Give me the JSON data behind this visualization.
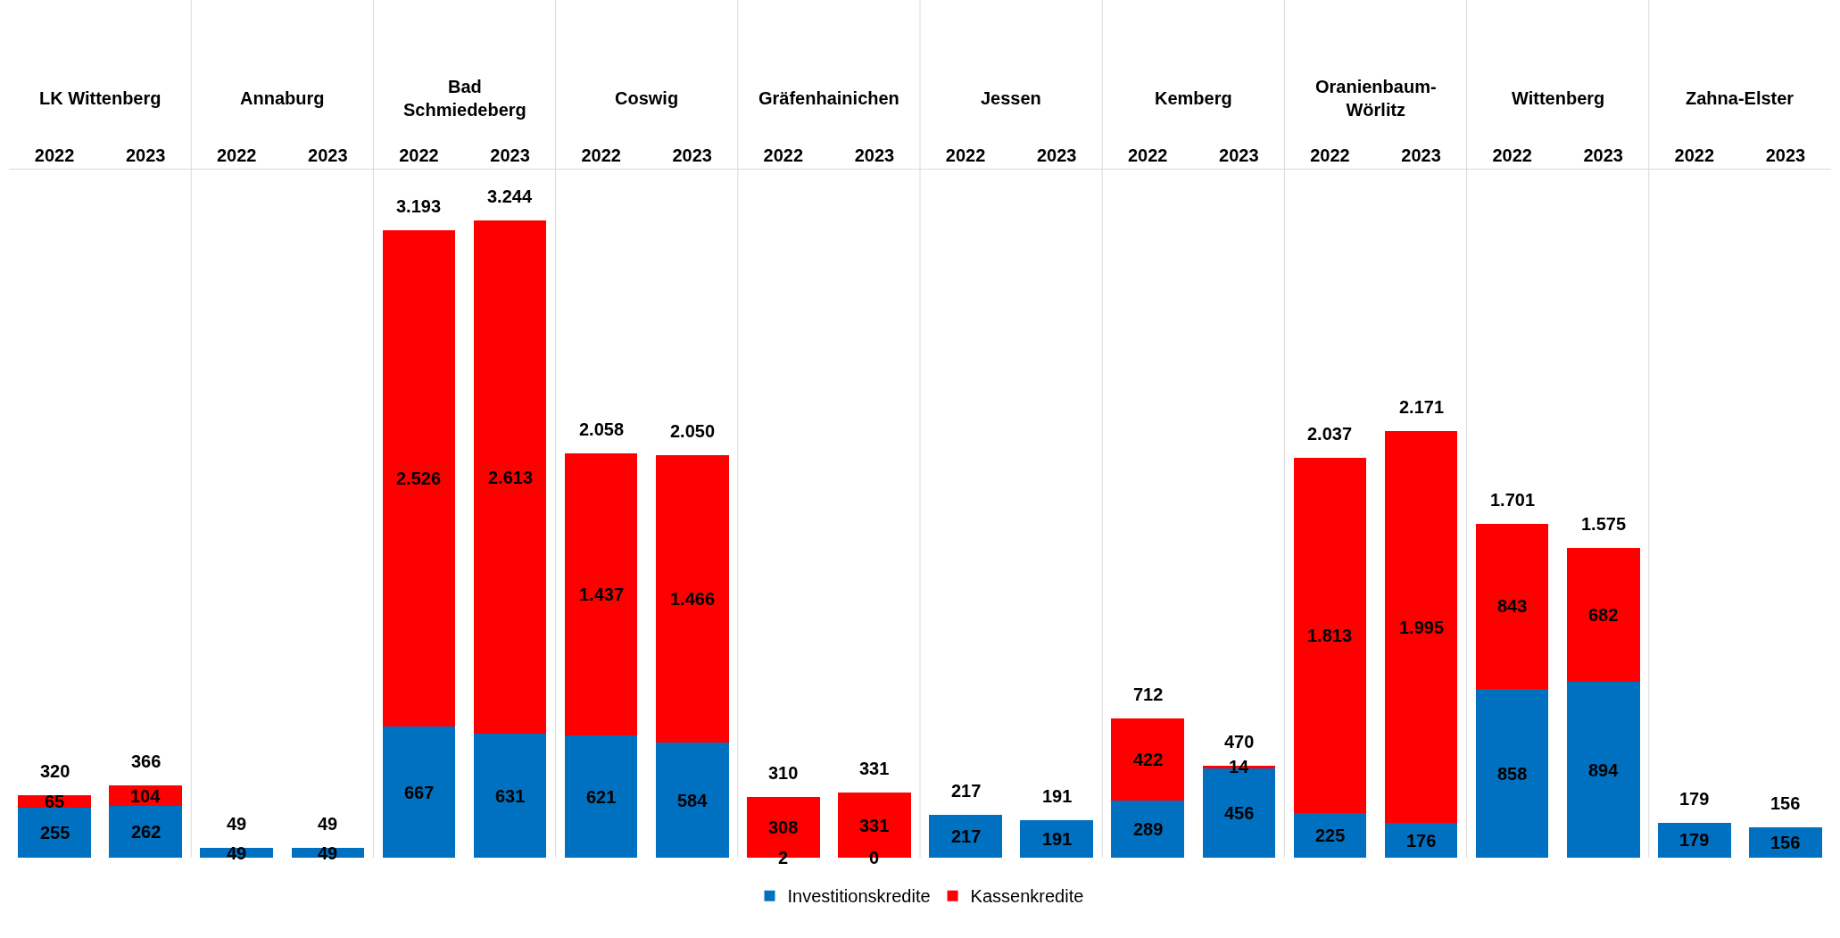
{
  "chart_data": {
    "type": "bar",
    "stacked": true,
    "legend": "bottom",
    "categories": [
      "2022",
      "2023",
      "2022",
      "2023",
      "2022",
      "2023",
      "2022",
      "2023",
      "2022",
      "2023",
      "2022",
      "2023",
      "2022",
      "2023",
      "2022",
      "2023",
      "2022",
      "2023",
      "2022",
      "2023"
    ],
    "annotations": [
      "LK Wittenberg",
      "Annaburg",
      "Bad Schmiedeberg",
      "Coswig",
      "Gräfenhainichen",
      "Jessen",
      "Kemberg",
      "Oranienbaum-Wörlitz",
      "Wittenberg",
      "Zahna-Elster"
    ],
    "series": [
      {
        "name": "Investitionskredite",
        "color": "#0070c0",
        "values": [
          255,
          262,
          49,
          49,
          667,
          631,
          621,
          584,
          2,
          0,
          217,
          191,
          289,
          456,
          225,
          176,
          858,
          894,
          179,
          156
        ],
        "value_labels": [
          "255",
          "262",
          "49",
          "49",
          "667",
          "631",
          "621",
          "584",
          "2",
          "0",
          "217",
          "191",
          "289",
          "456",
          "225",
          "176",
          "858",
          "894",
          "179",
          "156"
        ]
      },
      {
        "name": "Kassenkredite",
        "color": "#ff0000",
        "values": [
          65,
          104,
          null,
          null,
          2526,
          2613,
          1437,
          1466,
          308,
          331,
          null,
          null,
          422,
          14,
          1813,
          1995,
          843,
          682,
          null,
          null
        ],
        "value_labels": [
          "65",
          "104",
          null,
          null,
          "2.526",
          "2.613",
          "1.437",
          "1.466",
          "308",
          "331",
          null,
          null,
          "422",
          "14",
          "1.813",
          "1.995",
          "843",
          "682",
          null,
          null
        ]
      }
    ],
    "totals": [
      "320",
      "366",
      "49",
      "49",
      "3.193",
      "3.244",
      "2.058",
      "2.050",
      "310",
      "331",
      "217",
      "191",
      "712",
      "470",
      "2.037",
      "2.171",
      "1.701",
      "1.575",
      "179",
      "156"
    ]
  }
}
